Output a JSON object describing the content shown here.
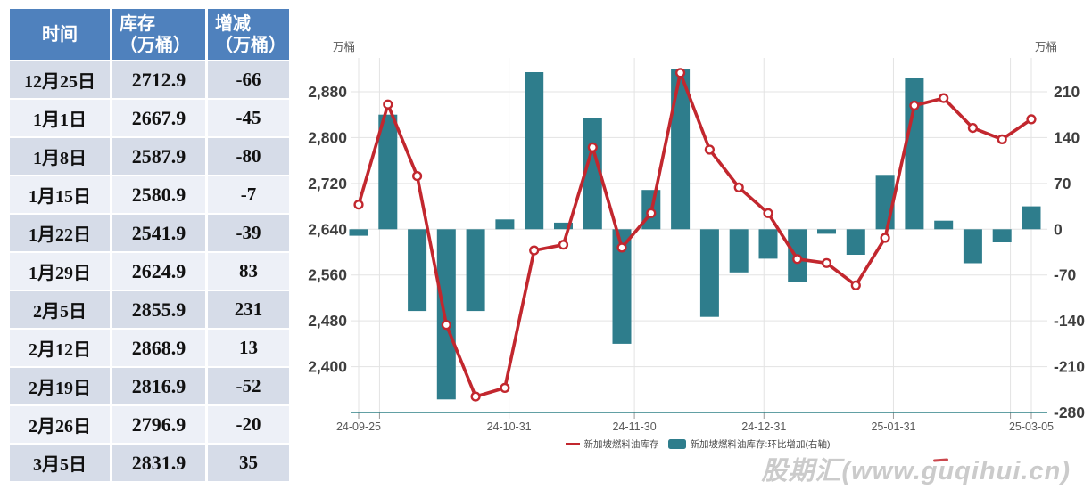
{
  "table": {
    "headers": [
      [
        "时间"
      ],
      [
        "库存",
        "（万桶）"
      ],
      [
        "增减",
        "（万桶）"
      ]
    ],
    "rows": [
      {
        "date": "12月25日",
        "inventory": "2712.9",
        "change": "-66"
      },
      {
        "date": "1月1日",
        "inventory": "2667.9",
        "change": "-45"
      },
      {
        "date": "1月8日",
        "inventory": "2587.9",
        "change": "-80"
      },
      {
        "date": "1月15日",
        "inventory": "2580.9",
        "change": "-7"
      },
      {
        "date": "1月22日",
        "inventory": "2541.9",
        "change": "-39"
      },
      {
        "date": "1月29日",
        "inventory": "2624.9",
        "change": "83"
      },
      {
        "date": "2月5日",
        "inventory": "2855.9",
        "change": "231"
      },
      {
        "date": "2月12日",
        "inventory": "2868.9",
        "change": "13"
      },
      {
        "date": "2月19日",
        "inventory": "2816.9",
        "change": "-52"
      },
      {
        "date": "2月26日",
        "inventory": "2796.9",
        "change": "-20"
      },
      {
        "date": "3月5日",
        "inventory": "2831.9",
        "change": "35"
      }
    ],
    "colors": {
      "header_bg": "#4f81bd",
      "row_dark": "#d6dce8",
      "row_light": "#edf0f7",
      "positive": "#ff0000",
      "negative": "#00b050"
    }
  },
  "chart_data": {
    "type": "mixed-line-bar",
    "unit_left": "万桶",
    "unit_right": "万桶",
    "x": [
      "24-09-25",
      "24-10-02",
      "24-10-09",
      "24-10-16",
      "24-10-23",
      "24-10-30",
      "24-11-06",
      "24-11-13",
      "24-11-20",
      "24-11-27",
      "24-12-04",
      "24-12-11",
      "24-12-18",
      "24-12-25",
      "25-01-01",
      "25-01-08",
      "25-01-15",
      "25-01-22",
      "25-01-29",
      "25-02-05",
      "25-02-12",
      "25-02-19",
      "25-02-26",
      "25-03-05"
    ],
    "series": [
      {
        "name": "新加坡燃料油库存",
        "type": "line",
        "axis": "left",
        "color": "#c2272e",
        "values": [
          2682.9,
          2857.9,
          2732.9,
          2472.9,
          2347.9,
          2362.9,
          2602.9,
          2612.9,
          2782.9,
          2607.9,
          2667.9,
          2912.9,
          2778.9,
          2712.9,
          2667.9,
          2587.9,
          2580.9,
          2541.9,
          2624.9,
          2855.9,
          2868.9,
          2816.9,
          2796.9,
          2831.9
        ]
      },
      {
        "name": "新加坡燃料油库存:环比增加(右轴)",
        "type": "bar",
        "axis": "right",
        "color": "#2e7d8c",
        "values": [
          -10,
          175,
          -125,
          -260,
          -125,
          15,
          240,
          10,
          170,
          -175,
          60,
          245,
          -134,
          -66,
          -45,
          -80,
          -7,
          -39,
          83,
          231,
          13,
          -52,
          -20,
          35
        ]
      }
    ],
    "left_axis": {
      "ticks": [
        2880,
        2800,
        2720,
        2640,
        2560,
        2480,
        2400
      ],
      "min": 2320,
      "grid": true
    },
    "right_axis": {
      "ticks": [
        210,
        140,
        70,
        0,
        -70,
        -140,
        -210,
        -280
      ],
      "min": -280,
      "grid": false
    },
    "x_axis": {
      "labels": [
        "24-09-25",
        "24-10-31",
        "24-11-30",
        "24-12-31",
        "25-01-31",
        "25-03-05"
      ],
      "label_days": [
        0,
        36,
        66,
        97,
        128,
        161
      ],
      "grid_days": [
        0,
        5,
        36,
        66,
        97,
        128,
        156,
        161
      ],
      "total_days": 161,
      "point_step_days": 7
    },
    "legend_position": "bottom"
  },
  "watermark": "股期汇(www.guqihui.cn)"
}
